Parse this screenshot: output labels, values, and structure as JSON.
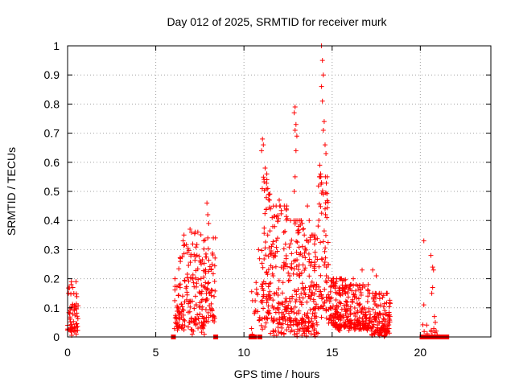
{
  "chart_data": {
    "type": "scatter",
    "title": "Day 012 of 2025, SRMTID for receiver murk",
    "xlabel": "GPS time / hours",
    "ylabel": "SRMTID / TECUs",
    "xlim": [
      0,
      24
    ],
    "ylim": [
      0,
      1
    ],
    "xticks": [
      "0",
      "5",
      "10",
      "15",
      "20"
    ],
    "yticks": [
      "0",
      "0.1",
      "0.2",
      "0.3",
      "0.4",
      "0.5",
      "0.6",
      "0.7",
      "0.8",
      "0.9",
      "1"
    ],
    "grid": true,
    "marker": "+",
    "color": "#ff0000",
    "clusters": [
      {
        "x": [
          0.0,
          0.6
        ],
        "y": [
          0.0,
          0.19
        ],
        "n": 60
      },
      {
        "x": [
          6.0,
          6.3
        ],
        "y": [
          0.02,
          0.2
        ],
        "n": 25
      },
      {
        "x": [
          6.3,
          7.0
        ],
        "y": [
          0.02,
          0.37
        ],
        "n": 70
      },
      {
        "x": [
          7.0,
          7.8
        ],
        "y": [
          0.0,
          0.36
        ],
        "n": 90
      },
      {
        "x": [
          7.8,
          8.4
        ],
        "y": [
          0.05,
          0.34
        ],
        "n": 60
      },
      {
        "x": [
          10.4,
          11.0
        ],
        "y": [
          0.0,
          0.3
        ],
        "n": 20
      },
      {
        "x": [
          11.0,
          11.5
        ],
        "y": [
          0.02,
          0.56
        ],
        "n": 70
      },
      {
        "x": [
          11.5,
          12.6
        ],
        "y": [
          0.0,
          0.45
        ],
        "n": 140
      },
      {
        "x": [
          12.6,
          13.4
        ],
        "y": [
          0.0,
          0.4
        ],
        "n": 110
      },
      {
        "x": [
          13.4,
          14.2
        ],
        "y": [
          0.0,
          0.35
        ],
        "n": 110
      },
      {
        "x": [
          14.2,
          14.8
        ],
        "y": [
          0.05,
          0.55
        ],
        "n": 70
      },
      {
        "x": [
          14.8,
          15.8
        ],
        "y": [
          0.02,
          0.2
        ],
        "n": 140
      },
      {
        "x": [
          15.8,
          17.2
        ],
        "y": [
          0.02,
          0.18
        ],
        "n": 160
      },
      {
        "x": [
          17.2,
          18.3
        ],
        "y": [
          0.0,
          0.15
        ],
        "n": 130
      },
      {
        "x": [
          20.1,
          21.0
        ],
        "y": [
          0.0,
          0.05
        ],
        "n": 10
      }
    ],
    "points": [
      [
        0.2,
        0.18
      ],
      [
        0.3,
        0.17
      ],
      [
        0.05,
        0.15
      ],
      [
        7.9,
        0.46
      ],
      [
        7.95,
        0.42
      ],
      [
        8.0,
        0.39
      ],
      [
        6.6,
        0.35
      ],
      [
        6.55,
        0.33
      ],
      [
        11.05,
        0.68
      ],
      [
        11.1,
        0.66
      ],
      [
        11.0,
        0.64
      ],
      [
        11.2,
        0.58
      ],
      [
        11.3,
        0.54
      ],
      [
        11.35,
        0.51
      ],
      [
        11.4,
        0.49
      ],
      [
        11.45,
        0.47
      ],
      [
        11.5,
        0.44
      ],
      [
        11.6,
        0.41
      ],
      [
        12.0,
        0.47
      ],
      [
        12.4,
        0.44
      ],
      [
        12.9,
        0.79
      ],
      [
        12.85,
        0.77
      ],
      [
        12.95,
        0.73
      ],
      [
        12.9,
        0.71
      ],
      [
        13.0,
        0.69
      ],
      [
        12.95,
        0.64
      ],
      [
        12.9,
        0.55
      ],
      [
        12.85,
        0.5
      ],
      [
        13.1,
        0.38
      ],
      [
        13.6,
        0.45
      ],
      [
        13.7,
        0.4
      ],
      [
        14.4,
        1.0
      ],
      [
        14.45,
        0.95
      ],
      [
        14.5,
        0.9
      ],
      [
        14.4,
        0.86
      ],
      [
        14.45,
        0.81
      ],
      [
        14.55,
        0.74
      ],
      [
        14.5,
        0.71
      ],
      [
        14.6,
        0.66
      ],
      [
        14.65,
        0.63
      ],
      [
        14.3,
        0.59
      ],
      [
        14.35,
        0.56
      ],
      [
        14.4,
        0.53
      ],
      [
        14.5,
        0.49
      ],
      [
        14.6,
        0.44
      ],
      [
        14.7,
        0.41
      ],
      [
        16.7,
        0.23
      ],
      [
        17.3,
        0.23
      ],
      [
        17.5,
        0.21
      ],
      [
        18.1,
        0.15
      ],
      [
        16.2,
        0.2
      ],
      [
        20.2,
        0.33
      ],
      [
        20.6,
        0.28
      ],
      [
        20.7,
        0.24
      ],
      [
        20.75,
        0.23
      ],
      [
        20.7,
        0.17
      ],
      [
        20.65,
        0.15
      ],
      [
        20.2,
        0.11
      ],
      [
        20.8,
        0.07
      ],
      [
        20.85,
        0.05
      ],
      [
        20.9,
        0.02
      ]
    ],
    "zero_squares": [
      6.0,
      8.4,
      10.4,
      10.5,
      10.6,
      10.9,
      20.1,
      20.2,
      20.3,
      20.4,
      20.5,
      20.6,
      20.7,
      20.8,
      20.9,
      21.0,
      21.1,
      21.2,
      21.3,
      21.4,
      21.5
    ]
  }
}
